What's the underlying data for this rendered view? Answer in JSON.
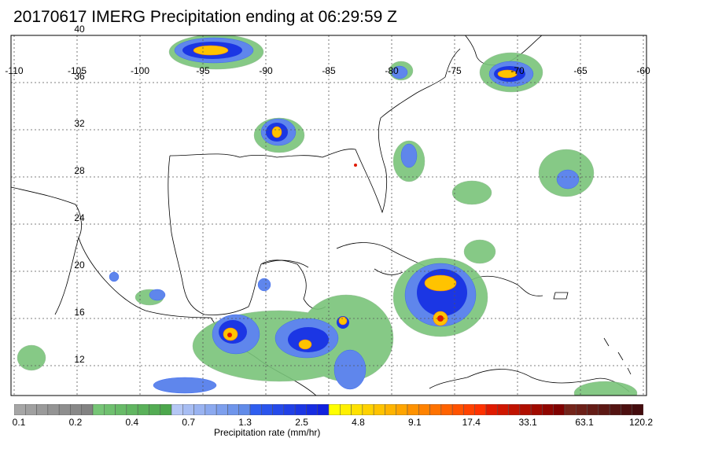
{
  "title": "20170617 IMERG Precipitation ending at 06:29:59 Z",
  "map": {
    "lon_ticks": [
      "-110",
      "-105",
      "-100",
      "-95",
      "-90",
      "-85",
      "-80",
      "-75",
      "-70",
      "-65",
      "-60"
    ],
    "lat_ticks": [
      "40",
      "36",
      "32",
      "28",
      "24",
      "20",
      "16",
      "12"
    ],
    "gridlines": "dotted",
    "frame": "solid"
  },
  "colorbar": {
    "title": "Precipitation rate (mm/hr)",
    "tick_labels": [
      "0.1",
      "0.2",
      "0.4",
      "0.7",
      "1.3",
      "2.5",
      "4.8",
      "9.1",
      "17.4",
      "33.1",
      "63.1",
      "120.2"
    ],
    "colors": [
      "#a6a6a6",
      "#a0a0a0",
      "#9a9a9a",
      "#949494",
      "#8e8e8e",
      "#888888",
      "#828282",
      "#76c576",
      "#6fc06f",
      "#68bb68",
      "#61b661",
      "#5ab15a",
      "#53ac53",
      "#4ca74c",
      "#b5c7f5",
      "#a7bdf3",
      "#99b3f1",
      "#8ba9ef",
      "#7d9fed",
      "#6f95eb",
      "#618be9",
      "#2f5ef0",
      "#2a54ed",
      "#254aea",
      "#2040e7",
      "#1b36e4",
      "#162ce1",
      "#1122de",
      "#ffff00",
      "#fff000",
      "#ffe100",
      "#ffd200",
      "#ffc300",
      "#ffb400",
      "#ffa500",
      "#ff9200",
      "#ff8200",
      "#ff7200",
      "#ff6200",
      "#ff5200",
      "#ff4200",
      "#ff3200",
      "#e01a00",
      "#d01600",
      "#c01200",
      "#b00e00",
      "#a00a00",
      "#900600",
      "#800200",
      "#74241a",
      "#6c2018",
      "#641c16",
      "#5c1814",
      "#541412",
      "#4c1010",
      "#440c0e"
    ],
    "label_positions": [
      "0.1",
      "0.2",
      "0.4",
      "0.7",
      "1.3",
      "2.5",
      "4.8",
      "9.1",
      "17.4",
      "33.1",
      "63.1",
      "120.2"
    ]
  }
}
